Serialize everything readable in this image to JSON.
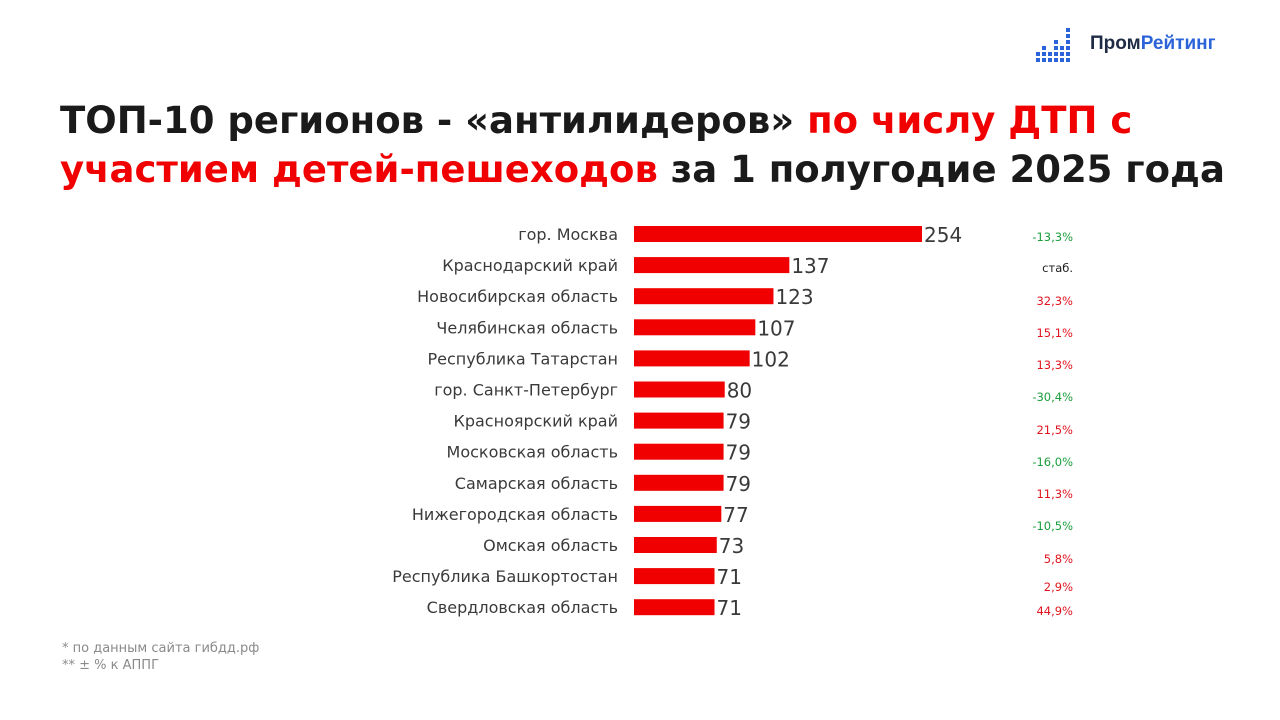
{
  "brand": {
    "name_part1": "Пром",
    "name_part2": "Рейтинг",
    "colors": {
      "dark": "#1f2a44",
      "accent": "#2b63d9"
    }
  },
  "title": {
    "part1": "ТОП-10 регионов - «антилидеров» ",
    "part2_highlight": "по числу ДТП с участием детей-пешеходов",
    "part3": " за 1 полугодие 2025 года"
  },
  "colors": {
    "bar": "#f00000",
    "positive_change": "#e0141e",
    "negative_change": "#1a9e3c",
    "neutral_change": "#1a1a1a"
  },
  "chart_data": {
    "type": "bar",
    "orientation": "horizontal",
    "categories": [
      "гор. Москва",
      "Краснодарский край",
      "Новосибирская область",
      "Челябинская область",
      "Республика Татарстан",
      "гор. Санкт-Петербург",
      "Красноярский край",
      "Московская область",
      "Самарская область",
      "Нижегородская область",
      "Омская область",
      "Республика Башкортостан",
      "Свердловская область"
    ],
    "values": [
      254,
      137,
      123,
      107,
      102,
      80,
      79,
      79,
      79,
      77,
      73,
      71,
      71
    ],
    "data_labels": [
      "254",
      "137",
      "123",
      "107",
      "102",
      "80",
      "79",
      "79",
      "79",
      "77",
      "73",
      "71",
      "71"
    ],
    "changes": [
      "-13,3%",
      "стаб.",
      "32,3%",
      "15,1%",
      "13,3%",
      "-30,4%",
      "21,5%",
      "-16,0%",
      "11,3%",
      "-10,5%",
      "5,8%",
      "2,9%",
      "44,9%"
    ],
    "change_direction": [
      "down",
      "flat",
      "up",
      "up",
      "up",
      "down",
      "up",
      "down",
      "up",
      "down",
      "up",
      "up",
      "up"
    ],
    "xlim": [
      0,
      254
    ],
    "grid": false,
    "legend": "none"
  },
  "footnotes": [
    "* по данным сайта гибдд.рф",
    "** ± % к АППГ"
  ]
}
